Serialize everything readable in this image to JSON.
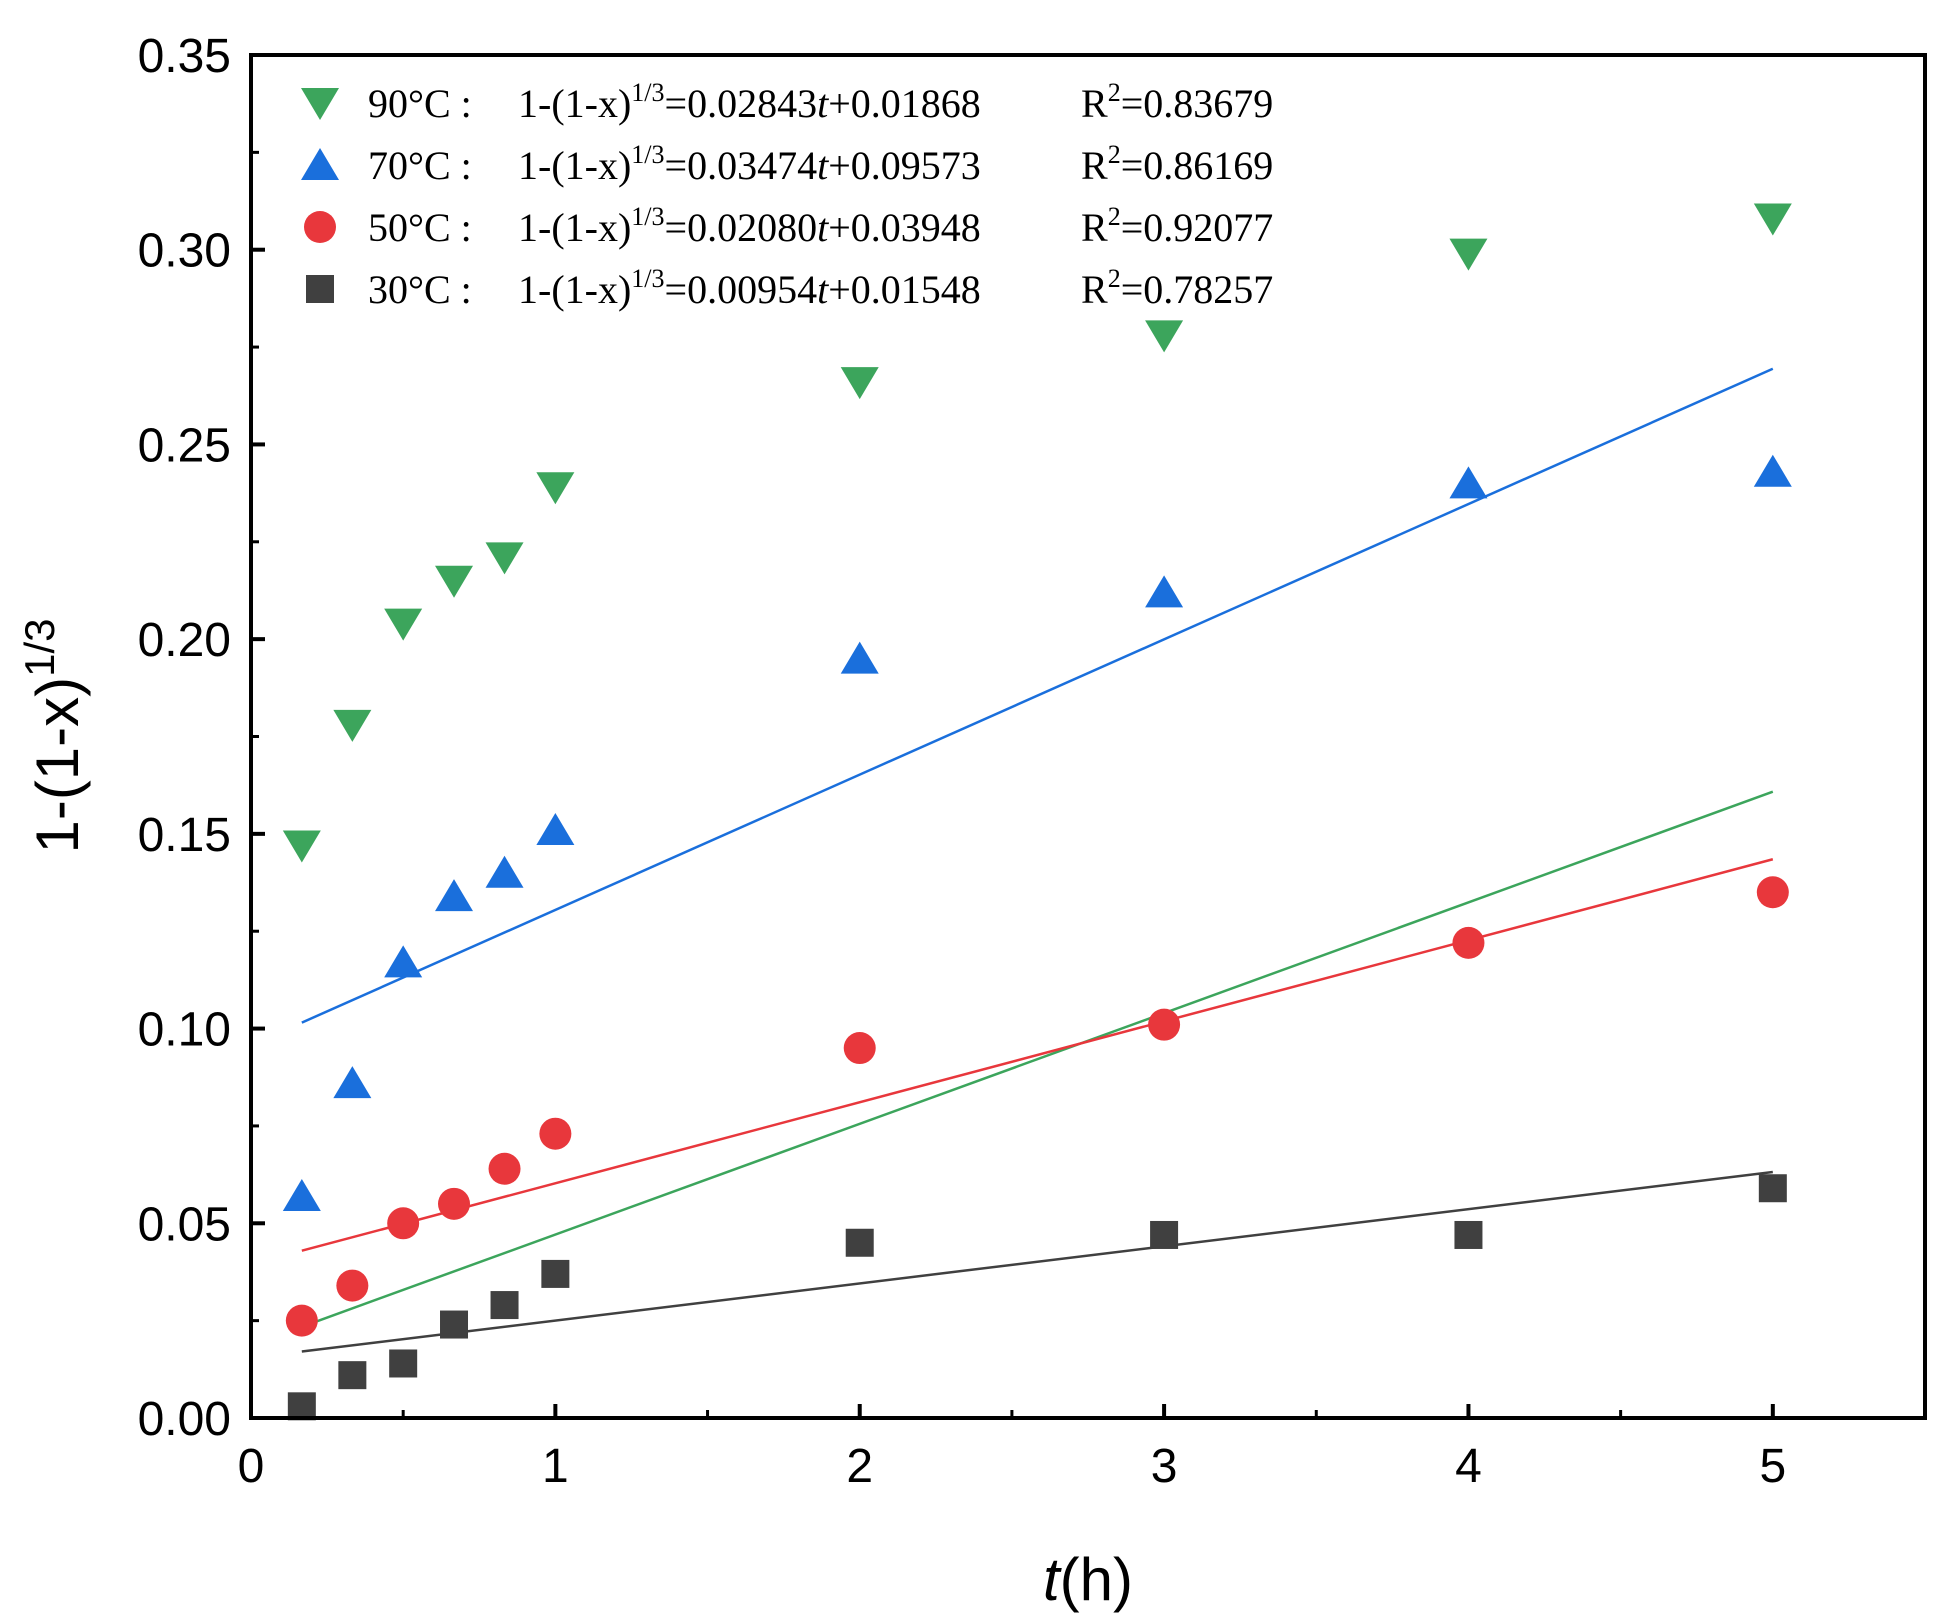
{
  "chart_data": {
    "type": "scatter",
    "title": "",
    "xlabel": {
      "italic": "t",
      "rest": "(h)"
    },
    "ylabel": {
      "base": "1-(1-x)",
      "sup": "1/3"
    },
    "xlim": [
      0,
      5.5
    ],
    "ylim": [
      0,
      0.35
    ],
    "xticks": [
      0,
      1,
      2,
      3,
      4,
      5
    ],
    "xtick_labels": [
      "0",
      "1",
      "2",
      "3",
      "4",
      "5"
    ],
    "yticks": [
      0,
      0.05,
      0.1,
      0.15,
      0.2,
      0.25,
      0.3,
      0.35
    ],
    "ytick_labels": [
      "0.00",
      "0.05",
      "0.10",
      "0.15",
      "0.20",
      "0.25",
      "0.30",
      "0.35"
    ],
    "legend_position": "top-left",
    "series": [
      {
        "name": "90°C",
        "key": "90c",
        "marker": "triangle-down",
        "color": "#3ca55c",
        "x": [
          0.167,
          0.333,
          0.5,
          0.667,
          0.833,
          1,
          2,
          3,
          4,
          5
        ],
        "y": [
          0.147,
          0.178,
          0.204,
          0.215,
          0.221,
          0.239,
          0.266,
          0.278,
          0.299,
          0.308
        ],
        "fit": {
          "slope": 0.02843,
          "intercept": 0.01868,
          "x_range": [
            0.167,
            5
          ]
        },
        "legend": {
          "label": "90°C :",
          "eq_prefix": "1-(1-x)",
          "eq_sup": "1/3",
          "eq_mid": "=0.02843",
          "eq_var": "t",
          "eq_suffix": "+0.01868",
          "r2_base": "R",
          "r2_sup": "2",
          "r2_val": "=0.83679"
        }
      },
      {
        "name": "70°C",
        "key": "70c",
        "marker": "triangle-up",
        "color": "#1a6fdc",
        "x": [
          0.167,
          0.333,
          0.5,
          0.667,
          0.833,
          1,
          2,
          3,
          4,
          5
        ],
        "y": [
          0.057,
          0.086,
          0.117,
          0.134,
          0.14,
          0.151,
          0.195,
          0.212,
          0.24,
          0.243
        ],
        "fit": {
          "slope": 0.03474,
          "intercept": 0.09573,
          "x_range": [
            0.167,
            5
          ]
        },
        "legend": {
          "label": "70°C :",
          "eq_prefix": "1-(1-x)",
          "eq_sup": "1/3",
          "eq_mid": "=0.03474",
          "eq_var": "t",
          "eq_suffix": "+0.09573",
          "r2_base": "R",
          "r2_sup": "2",
          "r2_val": "=0.86169"
        }
      },
      {
        "name": "50°C",
        "key": "50c",
        "marker": "circle",
        "color": "#e8373c",
        "x": [
          0.167,
          0.333,
          0.5,
          0.667,
          0.833,
          1,
          2,
          3,
          4,
          5
        ],
        "y": [
          0.025,
          0.034,
          0.05,
          0.055,
          0.064,
          0.073,
          0.095,
          0.101,
          0.122,
          0.135
        ],
        "fit": {
          "slope": 0.0208,
          "intercept": 0.03948,
          "x_range": [
            0.167,
            5
          ]
        },
        "legend": {
          "label": "50°C :",
          "eq_prefix": "1-(1-x)",
          "eq_sup": "1/3",
          "eq_mid": "=0.02080",
          "eq_var": "t",
          "eq_suffix": "+0.03948",
          "r2_base": "R",
          "r2_sup": "2",
          "r2_val": "=0.92077"
        }
      },
      {
        "name": "30°C",
        "key": "30c",
        "marker": "square",
        "color": "#404040",
        "x": [
          0.167,
          0.333,
          0.5,
          0.667,
          0.833,
          1,
          2,
          3,
          4,
          5
        ],
        "y": [
          0.003,
          0.011,
          0.014,
          0.024,
          0.029,
          0.037,
          0.045,
          0.047,
          0.047,
          0.059
        ],
        "fit": {
          "slope": 0.00954,
          "intercept": 0.01548,
          "x_range": [
            0.167,
            5
          ]
        },
        "legend": {
          "label": "30°C :",
          "eq_prefix": "1-(1-x)",
          "eq_sup": "1/3",
          "eq_mid": "=0.00954",
          "eq_var": "t",
          "eq_suffix": "+0.01548",
          "r2_base": "R",
          "r2_sup": "2",
          "r2_val": "=0.78257"
        }
      }
    ]
  }
}
